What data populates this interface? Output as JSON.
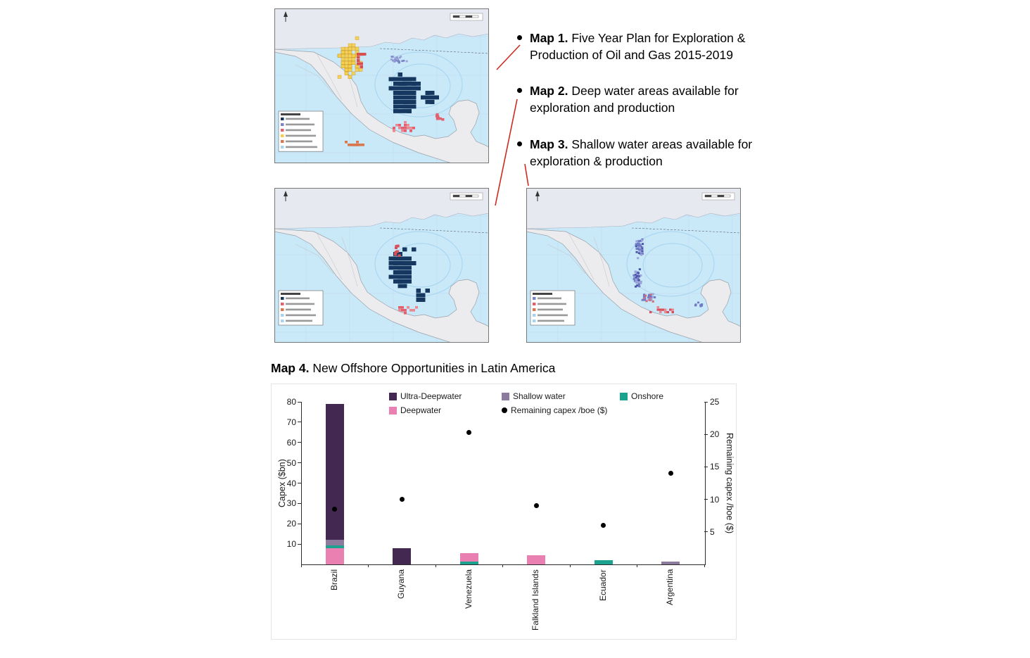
{
  "captions": {
    "bullets": [
      {
        "label": "Map 1.",
        "text": " Five Year Plan for Exploration & Production of Oil and Gas 2015-2019"
      },
      {
        "label": "Map 2.",
        "text": " Deep water areas available for exploration and production"
      },
      {
        "label": "Map 3.",
        "text": " Shallow water areas available for exploration & production"
      }
    ],
    "map4": {
      "label": "Map 4.",
      "text": " New Offshore Opportunities in Latin America"
    }
  },
  "chart_data": {
    "type": "bar",
    "title": "Map 4. New Offshore Opportunities in Latin America",
    "categories": [
      "Brazil",
      "Guyana",
      "Venezuela",
      "Falkland Islands",
      "Ecuador",
      "Argentina"
    ],
    "axes": {
      "left": {
        "label": "Capex ($bn)",
        "range": [
          0,
          80
        ],
        "ticks": [
          10,
          20,
          30,
          40,
          50,
          60,
          70,
          80
        ]
      },
      "right": {
        "label": "Remaining capex /boe ($)",
        "range": [
          0,
          25
        ],
        "ticks": [
          5,
          10,
          15,
          20,
          25
        ]
      }
    },
    "grid": "off",
    "legend_position": "top",
    "legend": [
      {
        "label": "Ultra-Deepwater",
        "color": "#432952",
        "marker": "square"
      },
      {
        "label": "Shallow water",
        "color": "#8d7b9e",
        "marker": "square"
      },
      {
        "label": "Onshore",
        "color": "#1ba390",
        "marker": "square"
      },
      {
        "label": "Deepwater",
        "color": "#ea7fb2",
        "marker": "square"
      },
      {
        "label": "Remaining capex /boe ($)",
        "color": "#000000",
        "marker": "dot"
      }
    ],
    "series_colors": {
      "Ultra-Deepwater": "#432952",
      "Deepwater": "#ea7fb2",
      "Shallow water": "#8d7b9e",
      "Onshore": "#1ba390"
    },
    "stacked_bars": [
      {
        "category": "Brazil",
        "segments": [
          {
            "series": "Deepwater",
            "value": 8
          },
          {
            "series": "Onshore",
            "value": 1.5
          },
          {
            "series": "Shallow water",
            "value": 2.5
          },
          {
            "series": "Ultra-Deepwater",
            "value": 67
          }
        ]
      },
      {
        "category": "Guyana",
        "segments": [
          {
            "series": "Ultra-Deepwater",
            "value": 8
          }
        ]
      },
      {
        "category": "Venezuela",
        "segments": [
          {
            "series": "Onshore",
            "value": 1.5
          },
          {
            "series": "Deepwater",
            "value": 4
          }
        ]
      },
      {
        "category": "Falkland Islands",
        "segments": [
          {
            "series": "Deepwater",
            "value": 4.5
          }
        ]
      },
      {
        "category": "Ecuador",
        "segments": [
          {
            "series": "Onshore",
            "value": 2
          }
        ]
      },
      {
        "category": "Argentina",
        "segments": [
          {
            "series": "Shallow water",
            "value": 1.5
          }
        ]
      }
    ],
    "dot_series": {
      "name": "Remaining capex /boe ($)",
      "values": [
        8.5,
        10,
        20.3,
        9,
        6,
        14
      ]
    }
  }
}
